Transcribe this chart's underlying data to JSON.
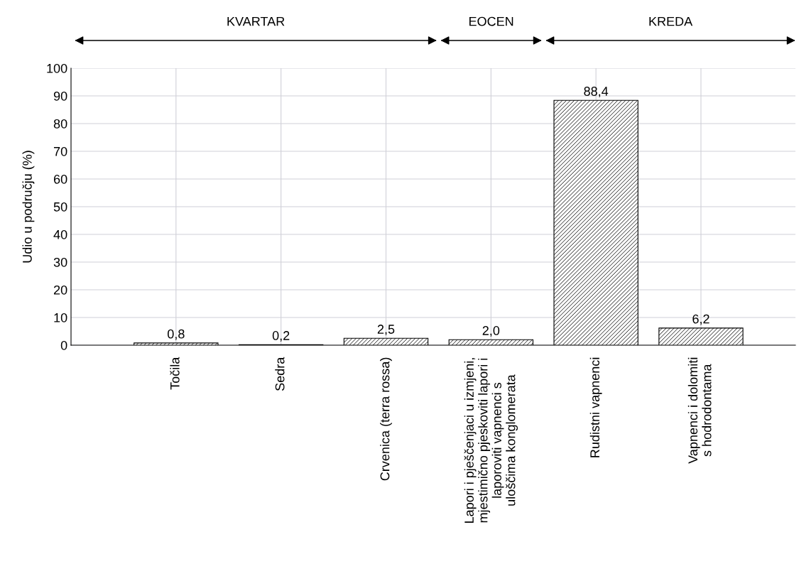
{
  "chart_data": {
    "type": "bar",
    "ylabel": "Udio u području (%)",
    "categories": [
      "Točila",
      "Sedra",
      "Crvenica (terra rossa)",
      "Lapori i pješčenjaci u izmjeni,\nmjestimično pjeskoviti lapori i\nlaporoviti vapnenci s\nuloščima konglomerata",
      "Rudistni vapnenci",
      "Vapnenci i dolomiti\ns hodrodontama"
    ],
    "values": [
      0.8,
      0.2,
      2.5,
      2.0,
      88.4,
      6.2
    ],
    "value_labels": [
      "0,8",
      "0,2",
      "2,5",
      "2,0",
      "88,4",
      "6,2"
    ],
    "color": "#000000",
    "ylim": [
      0,
      100
    ],
    "yticks": [
      0,
      10,
      20,
      30,
      40,
      50,
      60,
      70,
      80,
      90,
      100
    ],
    "grid": true,
    "annotations": [
      "KVARTAR",
      "EOCEN",
      "KREDA"
    ]
  }
}
